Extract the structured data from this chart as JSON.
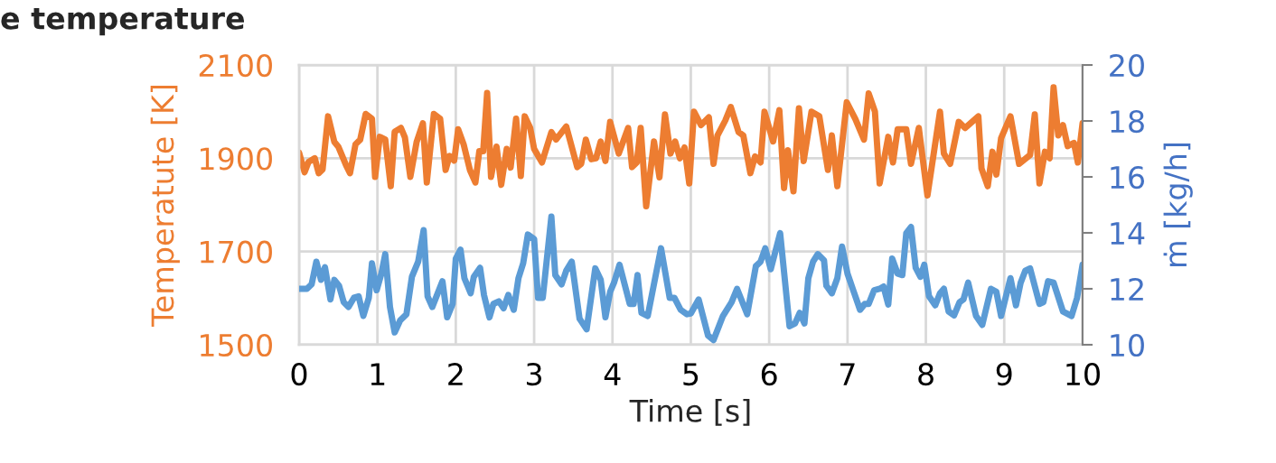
{
  "chart_data": {
    "type": "line",
    "title": "e temperature",
    "xlabel": "Time [s]",
    "ylabel": "Temperatute [K]",
    "y2label": "ṁ [kg/h]",
    "xlim": [
      0,
      10
    ],
    "xticks": [
      0,
      1,
      2,
      3,
      4,
      5,
      6,
      7,
      8,
      9,
      10
    ],
    "ylim": [
      1500,
      2100
    ],
    "yticks": [
      1500,
      1700,
      1900,
      2100
    ],
    "y2lim": [
      10,
      20
    ],
    "y2ticks": [
      10,
      12,
      14,
      16,
      18,
      20
    ],
    "grid": true,
    "legend": false,
    "marker": "none",
    "line_style": "solid",
    "series": [
      {
        "color": "#ed7d31",
        "x": [
          0,
          0.07,
          0.12,
          0.2,
          0.25,
          0.3,
          0.37,
          0.45,
          0.5,
          0.6,
          0.65,
          0.72,
          0.78,
          0.85,
          0.93,
          0.97,
          1.03,
          1.1,
          1.17,
          1.22,
          1.3,
          1.35,
          1.42,
          1.5,
          1.58,
          1.63,
          1.72,
          1.8,
          1.87,
          1.92,
          1.98,
          2.03,
          2.1,
          2.18,
          2.25,
          2.3,
          2.35,
          2.4,
          2.45,
          2.52,
          2.58,
          2.65,
          2.7,
          2.77,
          2.83,
          2.88,
          2.95,
          3.0,
          3.1,
          3.22,
          3.28,
          3.41,
          3.55,
          3.6,
          3.66,
          3.73,
          3.79,
          3.85,
          3.91,
          3.97,
          4.08,
          4.2,
          4.25,
          4.31,
          4.36,
          4.43,
          4.53,
          4.6,
          4.67,
          4.74,
          4.8,
          4.86,
          4.92,
          4.98,
          5.04,
          5.13,
          5.23,
          5.29,
          5.34,
          5.44,
          5.51,
          5.61,
          5.67,
          5.76,
          5.82,
          5.89,
          5.94,
          6.05,
          6.13,
          6.19,
          6.24,
          6.31,
          6.38,
          6.44,
          6.54,
          6.64,
          6.75,
          6.8,
          6.87,
          6.99,
          7.1,
          7.21,
          7.27,
          7.35,
          7.41,
          7.52,
          7.58,
          7.64,
          7.75,
          7.81,
          7.91,
          8.02,
          8.18,
          8.23,
          8.31,
          8.42,
          8.5,
          8.67,
          8.71,
          8.79,
          8.85,
          8.9,
          8.96,
          9.08,
          9.19,
          9.33,
          9.39,
          9.45,
          9.52,
          9.58,
          9.63,
          9.69,
          9.75,
          9.81,
          9.89,
          9.94,
          10.0
        ],
        "values": [
          1912,
          1870,
          1892,
          1900,
          1868,
          1876,
          1990,
          1935,
          1925,
          1885,
          1868,
          1930,
          1940,
          1995,
          1985,
          1860,
          1946,
          1940,
          1840,
          1957,
          1965,
          1945,
          1860,
          1935,
          1975,
          1848,
          1995,
          1985,
          1875,
          1905,
          1895,
          1962,
          1930,
          1875,
          1848,
          1915,
          1915,
          2040,
          1860,
          1925,
          1843,
          1920,
          1880,
          1985,
          1862,
          1990,
          1965,
          1920,
          1891,
          1956,
          1940,
          1968,
          1881,
          1888,
          1940,
          1898,
          1900,
          1936,
          1894,
          1978,
          1910,
          1965,
          1881,
          1891,
          1965,
          1797,
          1936,
          1859,
          1994,
          1910,
          1936,
          1900,
          1923,
          1846,
          2000,
          1971,
          1988,
          1888,
          1949,
          1981,
          2010,
          1956,
          1949,
          1868,
          1904,
          1891,
          2000,
          1936,
          2003,
          1836,
          1917,
          1829,
          2007,
          1894,
          2000,
          1990,
          1875,
          1949,
          1840,
          2020,
          1984,
          1940,
          2039,
          2000,
          1846,
          1946,
          1891,
          1962,
          1962,
          1888,
          1965,
          1820,
          2000,
          1910,
          1888,
          1978,
          1965,
          1990,
          1878,
          1840,
          1914,
          1865,
          1943,
          1990,
          1888,
          1907,
          1994,
          1846,
          1914,
          1900,
          2052,
          1949,
          1971,
          1926,
          1933,
          1891,
          1975
        ]
      },
      {
        "color": "#5b9bd5",
        "axis": "y2",
        "x": [
          0,
          0.1,
          0.16,
          0.22,
          0.28,
          0.33,
          0.4,
          0.45,
          0.51,
          0.57,
          0.63,
          0.7,
          0.76,
          0.82,
          0.89,
          0.93,
          0.99,
          1.05,
          1.1,
          1.16,
          1.22,
          1.29,
          1.37,
          1.44,
          1.52,
          1.59,
          1.64,
          1.7,
          1.83,
          1.89,
          1.96,
          2.0,
          2.06,
          2.11,
          2.19,
          2.23,
          2.31,
          2.36,
          2.43,
          2.48,
          2.55,
          2.61,
          2.67,
          2.74,
          2.8,
          2.86,
          2.92,
          3.0,
          3.05,
          3.11,
          3.22,
          3.27,
          3.35,
          3.41,
          3.48,
          3.58,
          3.67,
          3.78,
          3.85,
          3.91,
          3.97,
          4.02,
          4.09,
          4.22,
          4.27,
          4.32,
          4.37,
          4.45,
          4.54,
          4.62,
          4.73,
          4.79,
          4.87,
          4.95,
          5.0,
          5.1,
          5.22,
          5.29,
          5.41,
          5.52,
          5.59,
          5.72,
          5.83,
          5.89,
          5.95,
          6.02,
          6.14,
          6.26,
          6.33,
          6.39,
          6.45,
          6.5,
          6.56,
          6.62,
          6.7,
          6.73,
          6.8,
          6.87,
          6.93,
          7.0,
          7.08,
          7.16,
          7.22,
          7.27,
          7.34,
          7.41,
          7.46,
          7.52,
          7.57,
          7.64,
          7.7,
          7.75,
          7.81,
          7.87,
          7.93,
          7.98,
          8.04,
          8.12,
          8.18,
          8.23,
          8.29,
          8.36,
          8.43,
          8.48,
          8.54,
          8.64,
          8.72,
          8.83,
          8.9,
          8.96,
          9.08,
          9.15,
          9.21,
          9.27,
          9.33,
          9.45,
          9.5,
          9.56,
          9.63,
          9.75,
          9.86,
          9.93,
          10.0
        ],
        "values": [
          12.0,
          12.0,
          12.16,
          12.97,
          12.32,
          12.77,
          11.62,
          12.32,
          12.11,
          11.52,
          11.35,
          11.68,
          11.73,
          11.03,
          11.68,
          12.91,
          11.95,
          12.54,
          13.24,
          11.35,
          10.44,
          10.87,
          11.09,
          12.43,
          12.97,
          14.1,
          11.73,
          11.35,
          12.27,
          10.98,
          11.46,
          13.08,
          13.4,
          12.38,
          11.84,
          12.43,
          12.75,
          11.78,
          10.98,
          11.46,
          11.55,
          11.3,
          11.78,
          11.25,
          12.38,
          12.91,
          13.94,
          13.78,
          11.68,
          11.68,
          14.58,
          12.49,
          12.16,
          12.65,
          12.97,
          10.93,
          10.55,
          12.73,
          12.32,
          10.98,
          11.89,
          12.22,
          12.86,
          11.46,
          11.46,
          12.49,
          11.14,
          11.03,
          12.32,
          13.45,
          11.68,
          11.68,
          11.25,
          11.09,
          11.12,
          11.62,
          10.33,
          10.17,
          11.03,
          11.52,
          12.0,
          11.09,
          12.81,
          12.97,
          13.45,
          12.7,
          13.99,
          10.66,
          10.76,
          11.14,
          10.76,
          12.38,
          12.97,
          13.24,
          13.02,
          12.11,
          11.84,
          12.38,
          13.51,
          12.54,
          11.89,
          11.25,
          11.46,
          11.46,
          11.95,
          12.0,
          12.08,
          11.44,
          13.08,
          12.54,
          12.49,
          13.99,
          14.21,
          12.75,
          12.43,
          12.86,
          11.73,
          11.41,
          11.84,
          12.0,
          11.19,
          11.05,
          11.52,
          11.62,
          12.22,
          11.03,
          10.71,
          12.0,
          11.89,
          11.03,
          12.38,
          11.41,
          12.22,
          12.65,
          12.73,
          11.46,
          11.52,
          12.27,
          12.22,
          11.19,
          11.03,
          11.68,
          12.86
        ]
      }
    ]
  }
}
